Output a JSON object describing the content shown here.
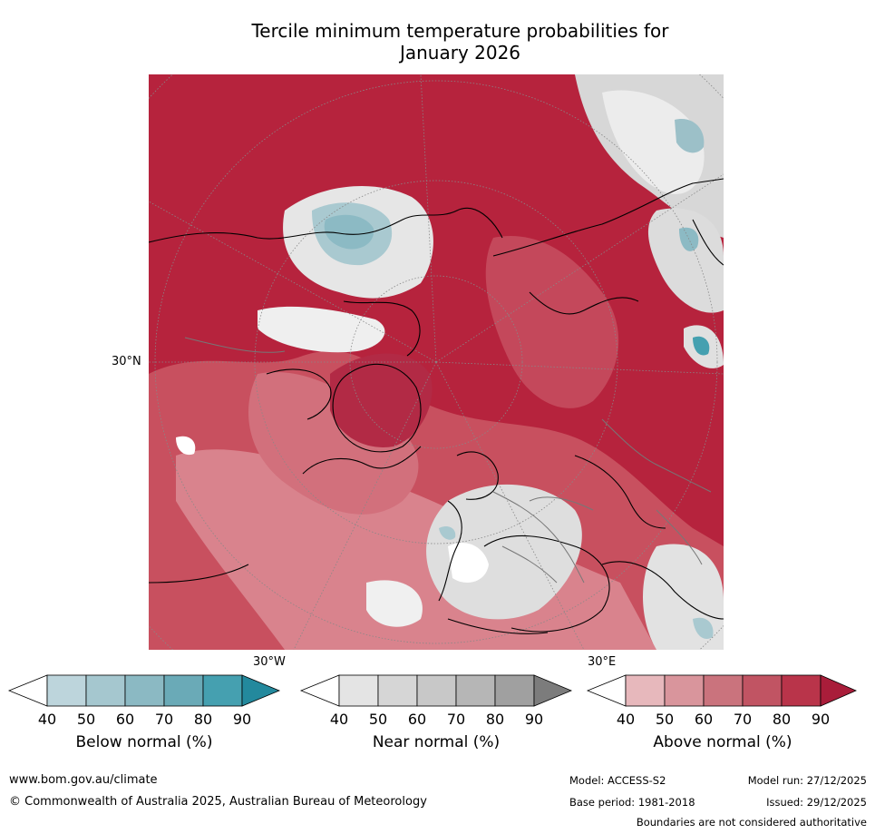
{
  "title": {
    "line1": "Tercile minimum temperature probabilities for",
    "line2": "January 2026"
  },
  "map": {
    "label_left": "30°N",
    "label_bottom_left": "30°W",
    "label_bottom_right": "30°E"
  },
  "colorbars": [
    {
      "label": "Below normal (%)",
      "ticks": [
        "40",
        "50",
        "60",
        "70",
        "80",
        "90"
      ],
      "colors": [
        "#ffffff",
        "#bdd5dc",
        "#a5c7cf",
        "#8bb9c3",
        "#6aaab7",
        "#45a0b0",
        "#23899d"
      ]
    },
    {
      "label": "Near normal (%)",
      "ticks": [
        "40",
        "50",
        "60",
        "70",
        "80",
        "90"
      ],
      "colors": [
        "#ffffff",
        "#e4e4e4",
        "#d6d6d6",
        "#c8c8c8",
        "#b6b6b6",
        "#a0a0a0",
        "#7c7c7c"
      ]
    },
    {
      "label": "Above normal (%)",
      "ticks": [
        "40",
        "50",
        "60",
        "70",
        "80",
        "90"
      ],
      "colors": [
        "#ffffff",
        "#e7b8bc",
        "#d9959c",
        "#ca737d",
        "#c15463",
        "#b9344a",
        "#a91d3a"
      ]
    }
  ],
  "footer": {
    "website": "www.bom.gov.au/climate",
    "copyright": "© Commonwealth of Australia 2025, Australian Bureau of Meteorology",
    "model": "Model: ACCESS-S2",
    "model_run": "Model run: 27/12/2025",
    "base_period": "Base period: 1981-2018",
    "issued": "Issued: 29/12/2025",
    "disclaimer": "Boundaries are not considered authoritative"
  }
}
